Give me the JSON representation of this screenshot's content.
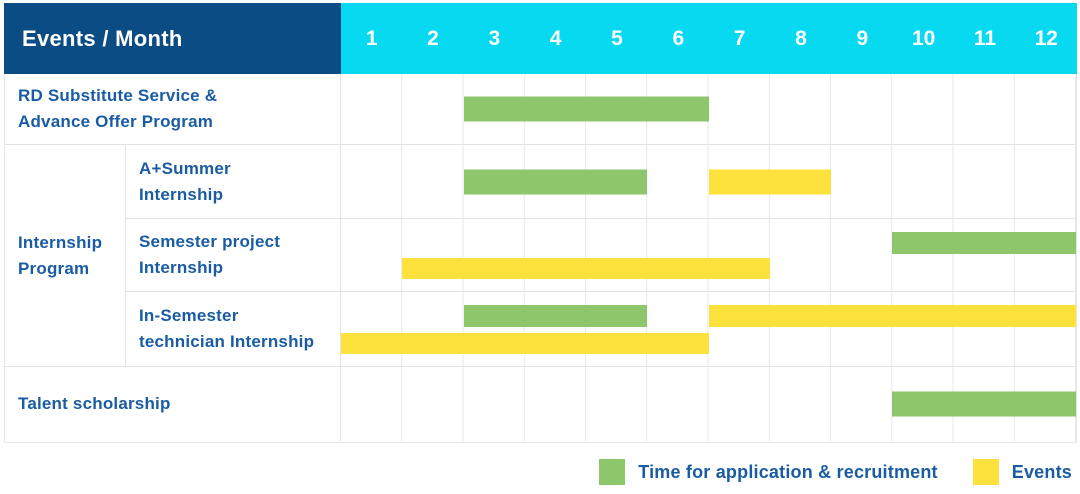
{
  "header": {
    "events_month_label": "Events / Month",
    "months": [
      "1",
      "2",
      "3",
      "4",
      "5",
      "6",
      "7",
      "8",
      "9",
      "10",
      "11",
      "12"
    ]
  },
  "group": {
    "label": "Internship\nProgram"
  },
  "rows": [
    {
      "label": "RD Substitute Service &\nAdvance Offer Program",
      "bars": [
        {
          "type": "application",
          "start": 3,
          "end": 6,
          "lane": "center"
        }
      ]
    },
    {
      "label": "A+Summer\nInternship",
      "bars": [
        {
          "type": "application",
          "start": 3,
          "end": 5,
          "lane": "center"
        },
        {
          "type": "event",
          "start": 7,
          "end": 8,
          "lane": "center"
        }
      ]
    },
    {
      "label": "Semester project\nInternship",
      "bars": [
        {
          "type": "application",
          "start": 10,
          "end": 12,
          "lane": "top"
        },
        {
          "type": "event",
          "start": 2,
          "end": 7,
          "lane": "bottom"
        }
      ]
    },
    {
      "label": "In-Semester\ntechnician Internship",
      "bars": [
        {
          "type": "application",
          "start": 3,
          "end": 5,
          "lane": "top"
        },
        {
          "type": "event",
          "start": 7,
          "end": 12,
          "lane": "top"
        },
        {
          "type": "event",
          "start": 1,
          "end": 6,
          "lane": "bottom"
        }
      ]
    },
    {
      "label": "Talent scholarship",
      "bars": [
        {
          "type": "application",
          "start": 10,
          "end": 12,
          "lane": "center"
        }
      ]
    }
  ],
  "legend": [
    {
      "type": "application",
      "label": "Time for application & recruitment"
    },
    {
      "type": "event",
      "label": "Events"
    }
  ],
  "colors": {
    "header_bg": "#0b4c85",
    "months_bg": "#06d9f0",
    "bar_green": "#8ec66b",
    "bar_yellow": "#fde23e",
    "text_blue": "#1a5ca3",
    "grid_line": "#e9e9e9"
  },
  "chart_data": {
    "type": "bar",
    "subtype": "gantt-schedule",
    "title": "Events / Month",
    "xlabel": "Month",
    "x_ticks": [
      1,
      2,
      3,
      4,
      5,
      6,
      7,
      8,
      9,
      10,
      11,
      12
    ],
    "xlim": [
      1,
      12
    ],
    "grid": true,
    "legend_position": "bottom-right",
    "series_legend": [
      "Time for application & recruitment",
      "Events"
    ],
    "tasks": [
      {
        "row": "RD Substitute Service & Advance Offer Program",
        "group": null,
        "bars": [
          {
            "series": "Time for application & recruitment",
            "start_month": 3,
            "end_month": 6
          }
        ]
      },
      {
        "row": "A+Summer Internship",
        "group": "Internship Program",
        "bars": [
          {
            "series": "Time for application & recruitment",
            "start_month": 3,
            "end_month": 5
          },
          {
            "series": "Events",
            "start_month": 7,
            "end_month": 8
          }
        ]
      },
      {
        "row": "Semester project Internship",
        "group": "Internship Program",
        "bars": [
          {
            "series": "Time for application & recruitment",
            "start_month": 10,
            "end_month": 12
          },
          {
            "series": "Events",
            "start_month": 2,
            "end_month": 7
          }
        ]
      },
      {
        "row": "In-Semester technician Internship",
        "group": "Internship Program",
        "bars": [
          {
            "series": "Time for application & recruitment",
            "start_month": 3,
            "end_month": 5
          },
          {
            "series": "Events",
            "start_month": 7,
            "end_month": 12
          },
          {
            "series": "Events",
            "start_month": 1,
            "end_month": 6
          }
        ]
      },
      {
        "row": "Talent scholarship",
        "group": null,
        "bars": [
          {
            "series": "Time for application & recruitment",
            "start_month": 10,
            "end_month": 12
          }
        ]
      }
    ]
  }
}
